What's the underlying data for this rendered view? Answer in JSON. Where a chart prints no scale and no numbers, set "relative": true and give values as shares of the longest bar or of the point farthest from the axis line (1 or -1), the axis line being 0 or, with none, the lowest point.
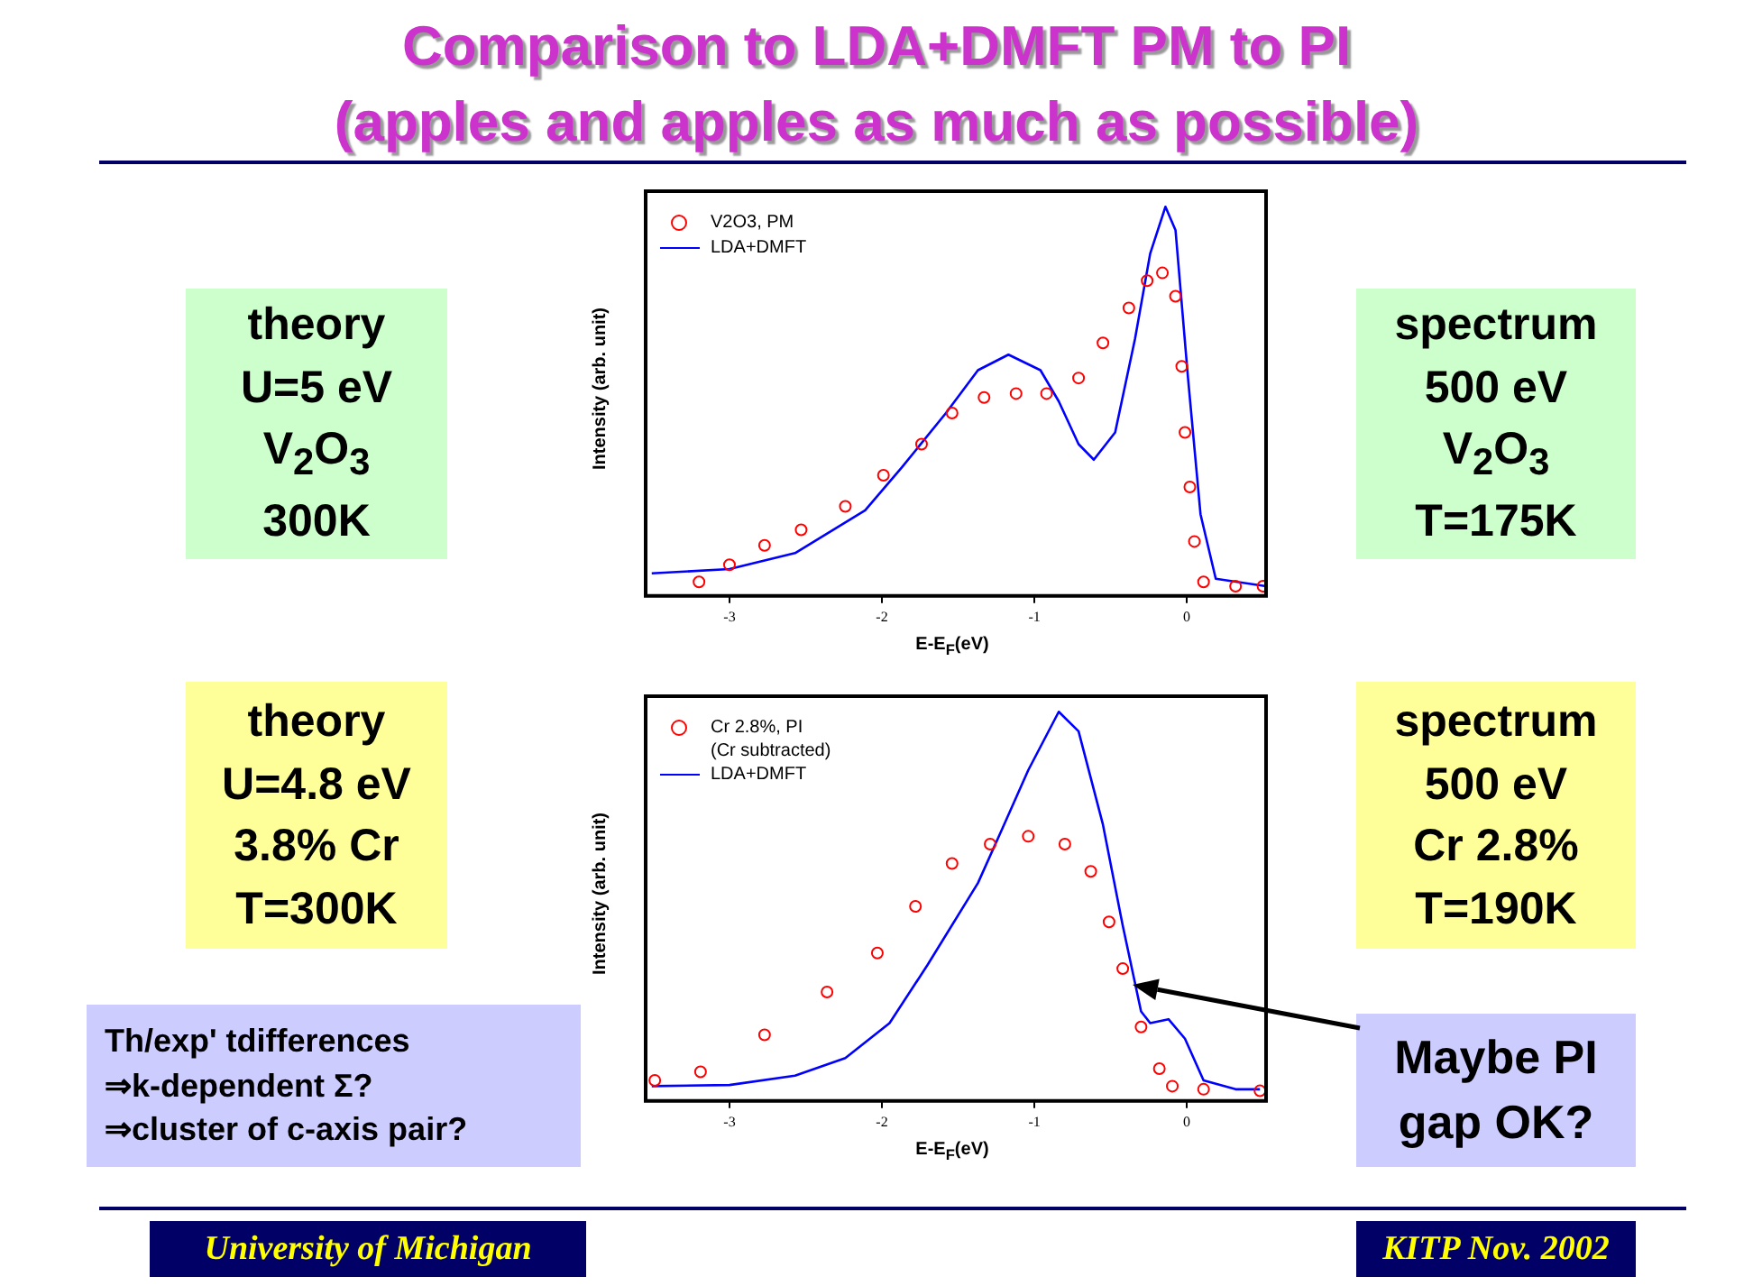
{
  "chart_data": [
    {
      "type": "scatter",
      "title": "Comparison to LDA+DMFT PM to PI",
      "subtitle": "(apples and apples as much as possible)",
      "xlabel": "E-E$_{F}$(eV)",
      "ylabel": "Intensity (arb. unit)",
      "relative": true,
      "xlim": [
        -3.55,
        0.52
      ],
      "xticks": [
        -3,
        -2,
        -1,
        0
      ],
      "legend": "top left",
      "annotations": [
        "theory\nU=5 eV\nV$_{2}$O$_{3}$\n300K",
        "spectrum\n500 eV\nV$_{2}$O$_{3}$\nT=175K",
        "University of Michigan",
        "KITP Nov. 2002"
      ],
      "series": [
        {
          "name": "V2O3, PM",
          "marker": "circle",
          "color": "#ff0000",
          "x": [
            -3.2,
            -3,
            -2.77,
            -2.53,
            -2.24,
            -1.99,
            -1.74,
            -1.54,
            -1.33,
            -1.12,
            -0.92,
            -0.71,
            -0.55,
            -0.38,
            -0.26,
            -0.16,
            -0.074,
            -0.033,
            -0.012,
            0.02,
            0.05,
            0.11,
            0.32,
            0.5
          ],
          "values": [
            0.036,
            0.08,
            0.13,
            0.17,
            0.23,
            0.31,
            0.39,
            0.47,
            0.51,
            0.52,
            0.52,
            0.56,
            0.65,
            0.74,
            0.81,
            0.83,
            0.77,
            0.59,
            0.42,
            0.28,
            0.14,
            0.036,
            0.025,
            0.025
          ]
        },
        {
          "name": "LDA+DMFT",
          "type": "line",
          "color": "#0000ff",
          "x": [
            -3.51,
            -3,
            -2.57,
            -2.11,
            -1.87,
            -1.58,
            -1.37,
            -1.17,
            -0.96,
            -0.84,
            -0.71,
            -0.61,
            -0.47,
            -0.34,
            -0.24,
            -0.14,
            -0.074,
            0.008,
            0.09,
            0.19,
            0.52
          ],
          "values": [
            0.058,
            0.069,
            0.11,
            0.22,
            0.33,
            0.47,
            0.58,
            0.62,
            0.58,
            0.5,
            0.39,
            0.35,
            0.42,
            0.66,
            0.88,
            1,
            0.94,
            0.56,
            0.21,
            0.044,
            0.025
          ]
        }
      ]
    },
    {
      "type": "scatter",
      "xlabel": "E-E$_{F}$(eV)",
      "ylabel": "Intensity (arb. unit)",
      "relative": true,
      "xlim": [
        -3.55,
        0.52
      ],
      "xticks": [
        -3,
        -2,
        -1,
        0
      ],
      "legend": "top left",
      "annotations": [
        "theory\nU=4.8 eV\n3.8% Cr\nT=300K",
        "spectrum\n500 eV\nCr 2.8%\nT=190K",
        "Th/exp' tdifferences\n⇒k-dependent Σ?\n⇒cluster of c-axis pair?",
        "Maybe PI\ngap OK?"
      ],
      "series": [
        {
          "name": "Cr 2.8%, PI\n(Cr subtracted)",
          "marker": "circle",
          "color": "#ff0000",
          "x": [
            -3.49,
            -3.19,
            -2.77,
            -2.36,
            -2.03,
            -1.78,
            -1.54,
            -1.29,
            -1.04,
            -0.8,
            -0.63,
            -0.51,
            -0.42,
            -0.3,
            -0.18,
            -0.095,
            0.11,
            0.48
          ],
          "values": [
            0.053,
            0.075,
            0.17,
            0.28,
            0.38,
            0.5,
            0.61,
            0.66,
            0.68,
            0.66,
            0.59,
            0.46,
            0.34,
            0.19,
            0.083,
            0.038,
            0.03,
            0.026
          ]
        },
        {
          "name": "LDA+DMFT",
          "type": "line",
          "color": "#0000ff",
          "x": [
            -3.51,
            -3,
            -2.57,
            -2.24,
            -1.95,
            -1.7,
            -1.37,
            -1.21,
            -1.04,
            -0.84,
            -0.71,
            -0.55,
            -0.42,
            -0.3,
            -0.24,
            -0.12,
            -0.012,
            0.11,
            0.32,
            0.48
          ],
          "values": [
            0.038,
            0.041,
            0.065,
            0.11,
            0.2,
            0.35,
            0.56,
            0.7,
            0.85,
            1,
            0.95,
            0.71,
            0.45,
            0.23,
            0.2,
            0.21,
            0.16,
            0.053,
            0.03,
            0.03
          ]
        }
      ]
    }
  ]
}
